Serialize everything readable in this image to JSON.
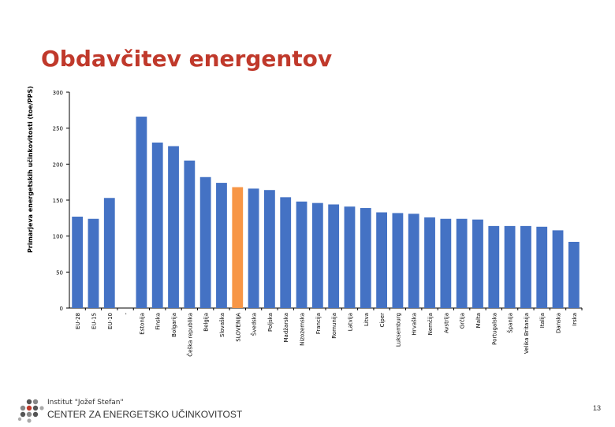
{
  "slide": {
    "title": "Obdavčitev energentov",
    "footer_org": "Institut \"Jožef Stefan\"",
    "footer_center": "CENTER ZA ENERGETSKO UČINKOVITOST",
    "page_number": "13",
    "logo_icon": "dots-logo-icon"
  },
  "colors": {
    "bar": "#4472c4",
    "highlight": "#f79646",
    "axis": "#000000",
    "title": "#c0392b"
  },
  "chart_data": {
    "type": "bar",
    "title": "",
    "xlabel": "",
    "ylabel": "Primarjeva energetskih učinkovitosti (toe/PPS)",
    "ylim": [
      0,
      300
    ],
    "yticks": [
      0,
      50,
      100,
      150,
      200,
      250,
      300
    ],
    "grid": false,
    "highlight_category": "SLOVENIJA",
    "categories": [
      "EU-28",
      "EU-15",
      "EU-10",
      "-",
      "Estonija",
      "Finska",
      "Bolgarija",
      "Češka republika",
      "Belgija",
      "Slovaška",
      "SLOVENIJA",
      "Švedska",
      "Poljska",
      "Madžarska",
      "Nizozemska",
      "Francija",
      "Romunija",
      "Latvija",
      "Litva",
      "Ciper",
      "Luksemburg",
      "Hrvaška",
      "Nemčija",
      "Avstrija",
      "Grčija",
      "Malta",
      "Portugalska",
      "Španija",
      "Velika Britanija",
      "Italija",
      "Danska",
      "Irska"
    ],
    "values": [
      127,
      124,
      153,
      null,
      266,
      230,
      225,
      205,
      182,
      174,
      168,
      166,
      164,
      154,
      148,
      146,
      144,
      141,
      139,
      133,
      132,
      131,
      126,
      124,
      124,
      123,
      114,
      114,
      114,
      113,
      108,
      92
    ]
  }
}
